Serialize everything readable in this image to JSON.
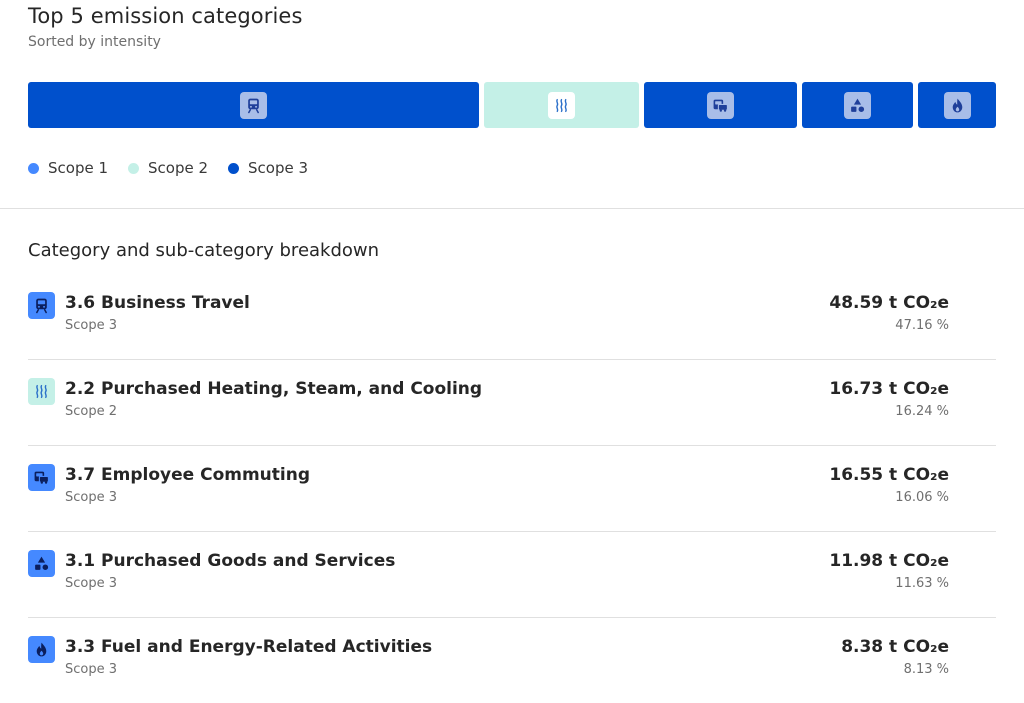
{
  "header": {
    "title": "Top 5 emission categories",
    "subtitle": "Sorted by intensity"
  },
  "colors": {
    "scope1": "#4589ff",
    "scope2": "#c4f0e7",
    "scope3": "#0050cc"
  },
  "bar_segments": [
    {
      "category": "3.6 Business Travel",
      "scope": 3,
      "percent": 47.16,
      "icon": "train-icon"
    },
    {
      "category": "2.2 Purchased Heating, Steam, and Cooling",
      "scope": 2,
      "percent": 16.24,
      "icon": "heat-waves-icon"
    },
    {
      "category": "3.7 Employee Commuting",
      "scope": 3,
      "percent": 16.06,
      "icon": "commute-icon"
    },
    {
      "category": "3.1 Purchased Goods and Services",
      "scope": 3,
      "percent": 11.63,
      "icon": "shapes-icon"
    },
    {
      "category": "3.3 Fuel and Energy-Related Activities",
      "scope": 3,
      "percent": 8.13,
      "icon": "flame-icon"
    }
  ],
  "legend": [
    {
      "label": "Scope 1"
    },
    {
      "label": "Scope 2"
    },
    {
      "label": "Scope 3"
    }
  ],
  "breakdown": {
    "title": "Category and sub-category breakdown",
    "rows": [
      {
        "name": "3.6 Business Travel",
        "scope_label": "Scope 3",
        "value": "48.59 t CO₂e",
        "percent": "47.16 %"
      },
      {
        "name": "2.2 Purchased Heating, Steam, and Cooling",
        "scope_label": "Scope 2",
        "value": "16.73 t CO₂e",
        "percent": "16.24 %"
      },
      {
        "name": "3.7 Employee Commuting",
        "scope_label": "Scope 3",
        "value": "16.55 t CO₂e",
        "percent": "16.06 %"
      },
      {
        "name": "3.1 Purchased Goods and Services",
        "scope_label": "Scope 3",
        "value": "11.98 t CO₂e",
        "percent": "11.63 %"
      },
      {
        "name": "3.3 Fuel and Energy-Related Activities",
        "scope_label": "Scope 3",
        "value": "8.38 t CO₂e",
        "percent": "8.13 %"
      }
    ]
  }
}
